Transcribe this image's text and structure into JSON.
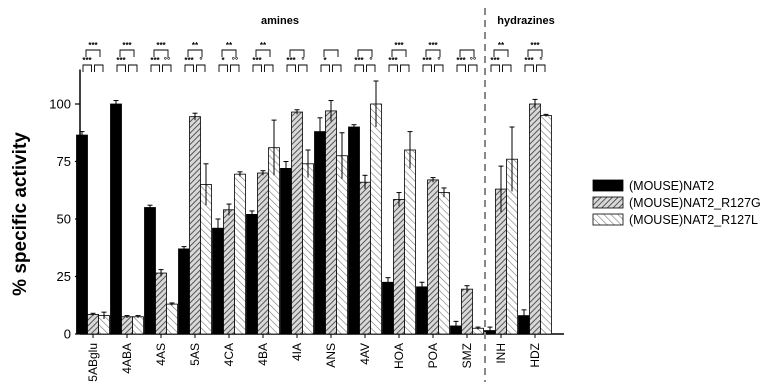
{
  "chart_data": {
    "type": "bar",
    "ylabel": "% specific activity",
    "ylim": [
      0,
      115
    ],
    "yticks": [
      "0",
      "25",
      "50",
      "75",
      "100"
    ],
    "grid": false,
    "legend_position": "right",
    "sections": [
      {
        "label": "amines",
        "first": 0,
        "last": 11
      },
      {
        "label": "hydrazines",
        "first": 12,
        "last": 13
      }
    ],
    "categories": [
      "5ABglu",
      "4ABA",
      "4AS",
      "5AS",
      "4CA",
      "4BA",
      "4IA",
      "ANS",
      "4AV",
      "HOA",
      "POA",
      "SMZ",
      "INH",
      "HDZ"
    ],
    "series": [
      {
        "name": "(MOUSE)NAT2",
        "pattern": "solid",
        "values": [
          86.5,
          100,
          55,
          37,
          46,
          52,
          72,
          88,
          90,
          22.5,
          20.5,
          3.5,
          1.5,
          8
        ],
        "errors": [
          1.5,
          1.5,
          1,
          1,
          4,
          1.5,
          3,
          6,
          1,
          2,
          2,
          2,
          1.5,
          2.5
        ]
      },
      {
        "name": "(MOUSE)NAT2_R127G",
        "pattern": "dense-hatch",
        "values": [
          8.5,
          7.5,
          26.5,
          94.5,
          54,
          70,
          96.5,
          97,
          66,
          58.5,
          67,
          19.5,
          63,
          100
        ],
        "errors": [
          0.5,
          0.5,
          1.5,
          1.5,
          2.5,
          1,
          1,
          4.5,
          3,
          3,
          1,
          1.5,
          10,
          2
        ]
      },
      {
        "name": "(MOUSE)NAT2_R127L",
        "pattern": "sparse-hatch",
        "values": [
          8,
          7.5,
          13,
          65,
          69.5,
          81,
          74,
          77.5,
          100,
          80,
          61.5,
          2.5,
          76,
          95
        ],
        "errors": [
          1.5,
          0.5,
          0.5,
          9,
          1,
          12,
          6,
          10,
          10,
          8,
          2,
          0.5,
          14,
          0.5
        ]
      }
    ],
    "significance": [
      {
        "top": "***",
        "left": "***",
        "right": ""
      },
      {
        "top": "***",
        "left": "***",
        "right": ""
      },
      {
        "top": "***",
        "left": "***",
        "right": "°°"
      },
      {
        "top": "**",
        "left": "***",
        "right": "°"
      },
      {
        "top": "**",
        "left": "*",
        "right": "°°"
      },
      {
        "top": "**",
        "left": "***",
        "right": ""
      },
      {
        "top": "",
        "left": "***",
        "right": "°"
      },
      {
        "top": "",
        "left": "*",
        "right": ""
      },
      {
        "top": "",
        "left": "***",
        "right": "°"
      },
      {
        "top": "***",
        "left": "***",
        "right": ""
      },
      {
        "top": "***",
        "left": "***",
        "right": "°"
      },
      {
        "top": "",
        "left": "***",
        "right": "°°"
      },
      {
        "top": "**",
        "left": "***",
        "right": ""
      },
      {
        "top": "***",
        "left": "***",
        "right": "°"
      }
    ]
  }
}
